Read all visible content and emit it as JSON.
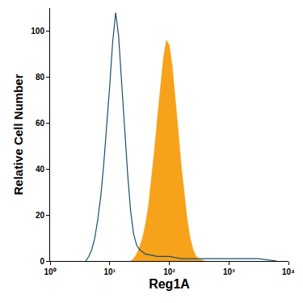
{
  "chart_data": {
    "type": "area",
    "x_label": "Reg1A",
    "y_label": "Relative Cell Number",
    "log": "x",
    "grid": false,
    "xlim": [
      1,
      10000
    ],
    "xticks": [
      {
        "value": 1,
        "label": "10⁰"
      },
      {
        "value": 10,
        "label": "10¹"
      },
      {
        "value": 100,
        "label": "10²"
      },
      {
        "value": 1000,
        "label": "10³"
      },
      {
        "value": 10000,
        "label": "10⁴"
      }
    ],
    "ylim": [
      0,
      110
    ],
    "yticks": [
      0,
      20,
      40,
      60,
      80,
      100
    ],
    "series": [
      {
        "type": "area",
        "color": "#f7a21b",
        "x": [
          22.4,
          25.1,
          28.2,
          31.6,
          35.5,
          39.8,
          44.7,
          50.1,
          56.2,
          63.1,
          70.8,
          79.4,
          89.1,
          100,
          112,
          126,
          141,
          158,
          178,
          200,
          224,
          251,
          282,
          316,
          398
        ],
        "values": [
          0,
          1,
          3,
          6,
          10,
          16,
          24,
          35,
          48,
          62,
          76,
          88,
          96,
          94,
          85,
          72,
          57,
          42,
          29,
          18,
          10,
          5,
          2,
          1,
          0
        ]
      },
      {
        "type": "line",
        "color": "#1c4f6e",
        "x": [
          3.98,
          4.47,
          5.01,
          5.62,
          6.31,
          7.08,
          7.94,
          8.91,
          10,
          11.2,
          12.6,
          14.1,
          15.8,
          17.8,
          20,
          22.4,
          25.1,
          28.2,
          31.6,
          35.5,
          39.8,
          63.1,
          100,
          158,
          316,
          1000,
          3162,
          6310
        ],
        "values": [
          0,
          2,
          5,
          10,
          18,
          28,
          42,
          58,
          76,
          95,
          108,
          98,
          80,
          58,
          38,
          22,
          12,
          7,
          5,
          4,
          3,
          2,
          2,
          1,
          1,
          1,
          1,
          0
        ]
      }
    ]
  }
}
